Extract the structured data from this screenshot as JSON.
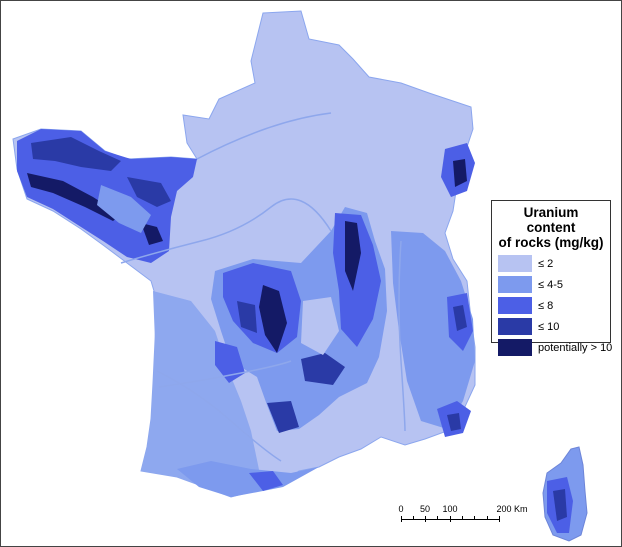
{
  "legend": {
    "title_line1": "Uranium content",
    "title_line2": "of rocks (mg/kg)",
    "classes": [
      {
        "label": "≤ 2",
        "color": "#b7c3f2"
      },
      {
        "label": "≤ 4-5",
        "color": "#7d9aee"
      },
      {
        "label": "≤ 8",
        "color": "#4c5fe6"
      },
      {
        "label": "≤ 10",
        "color": "#2a3aa6"
      },
      {
        "label": "potentially > 10",
        "color": "#141a66"
      }
    ]
  },
  "scale": {
    "ticks": [
      "0",
      "50",
      "100",
      "200 Km"
    ]
  },
  "colors": {
    "border": "#7aa0ef",
    "rivers": "#8ea7ec",
    "background": "#ffffff"
  }
}
